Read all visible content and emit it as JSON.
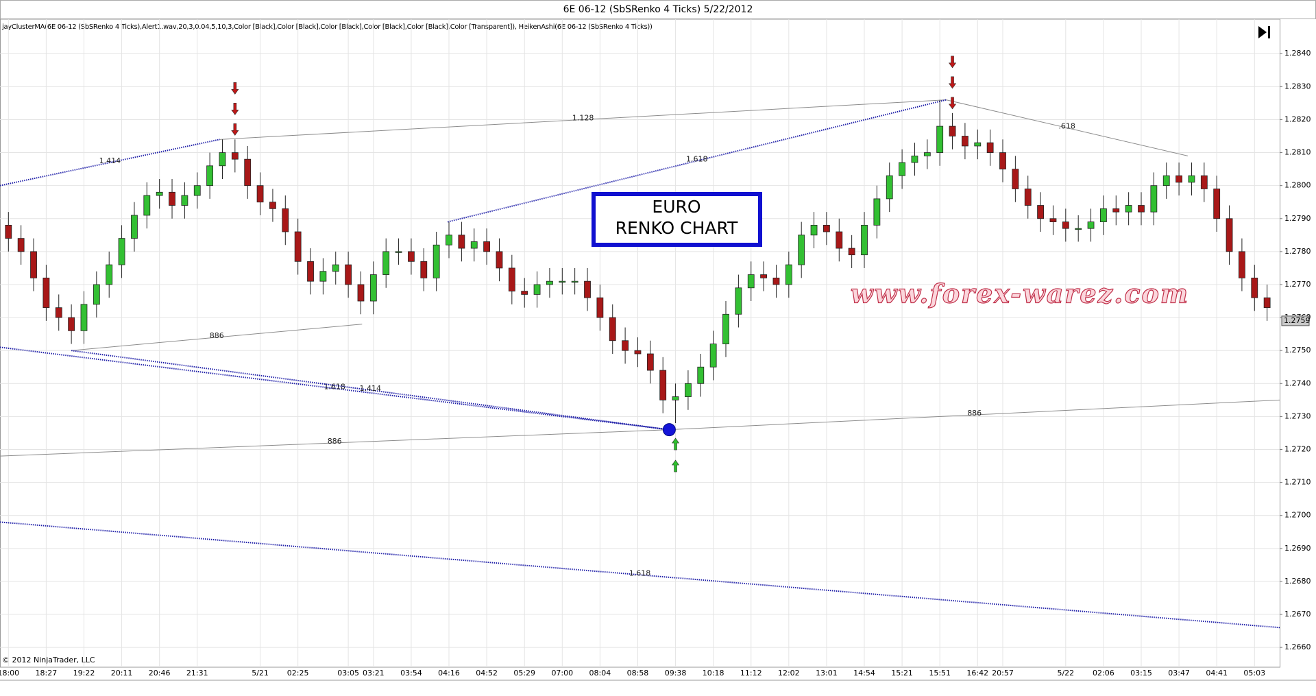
{
  "chart_data": {
    "type": "candlestick",
    "title": "6E 06-12 (SbSRenko 4 Ticks)  5/22/2012",
    "indicator_label": "jayClusterMA(6E 06-12 (SbSRenko 4 Ticks),Alert1.wav,20,3,0.04,5,10,3,Color [Black],Color [Black],Color [Black],Color [Black],Color [Black],Color [Transparent]), HeikenAshi(6E 06-12 (SbSRenko 4 Ticks))",
    "categories": [
      "18:00",
      null,
      null,
      "18:27",
      null,
      null,
      "19:22",
      null,
      null,
      "20:11",
      null,
      null,
      "20:46",
      null,
      null,
      "21:31",
      null,
      null,
      null,
      null,
      "5/21",
      null,
      null,
      "02:25",
      null,
      null,
      null,
      "03:05",
      null,
      "03:21",
      null,
      null,
      "03:54",
      null,
      null,
      "04:16",
      null,
      null,
      "04:52",
      null,
      null,
      "05:29",
      null,
      null,
      "07:00",
      null,
      null,
      "08:04",
      null,
      null,
      "08:58",
      null,
      null,
      "09:38",
      null,
      null,
      "10:18",
      null,
      null,
      "11:12",
      null,
      null,
      "12:02",
      null,
      null,
      "13:01",
      null,
      null,
      "14:54",
      null,
      null,
      "15:21",
      null,
      null,
      "15:51",
      null,
      null,
      "16:42",
      null,
      "20:57",
      null,
      null,
      null,
      null,
      "5/22",
      null,
      null,
      "02:06",
      null,
      null,
      "03:15",
      null,
      null,
      "03:47",
      null,
      null,
      "04:41",
      null,
      null,
      "05:03",
      null
    ],
    "open": [
      1.2788,
      1.2784,
      1.278,
      1.2772,
      1.2763,
      1.276,
      1.2756,
      1.2764,
      1.277,
      1.2776,
      1.2784,
      1.2791,
      1.2797,
      1.2798,
      1.2794,
      1.2797,
      1.28,
      1.2806,
      1.281,
      1.2808,
      1.28,
      1.2795,
      1.2793,
      1.2786,
      1.2777,
      1.2771,
      1.2774,
      1.2776,
      1.277,
      1.2765,
      1.2773,
      1.278,
      1.278,
      1.2777,
      1.2772,
      1.2782,
      1.2785,
      1.2781,
      1.2783,
      1.278,
      1.2775,
      1.2768,
      1.2767,
      1.277,
      1.2771,
      1.2771,
      1.2771,
      1.2766,
      1.276,
      1.2753,
      1.275,
      1.2749,
      1.2744,
      1.2735,
      1.2736,
      1.274,
      1.2745,
      1.2752,
      1.2761,
      1.2769,
      1.2773,
      1.2772,
      1.277,
      1.2776,
      1.2785,
      1.2788,
      1.2786,
      1.2781,
      1.2779,
      1.2788,
      1.2796,
      1.2803,
      1.2807,
      1.2809,
      1.281,
      1.2818,
      1.2815,
      1.2812,
      1.2813,
      1.281,
      1.2805,
      1.2799,
      1.2794,
      1.279,
      1.2789,
      1.2787,
      1.2787,
      1.2789,
      1.2793,
      1.2792,
      1.2794,
      1.2792,
      1.28,
      1.2803,
      1.2801,
      1.2803,
      1.2799,
      1.279,
      1.278,
      1.2772,
      1.2766
    ],
    "high": [
      1.2792,
      1.2788,
      1.2784,
      1.2776,
      1.2767,
      1.2764,
      1.2768,
      1.2774,
      1.278,
      1.2788,
      1.2795,
      1.2801,
      1.2802,
      1.2802,
      1.2801,
      1.2804,
      1.281,
      1.2814,
      1.2814,
      1.2812,
      1.2804,
      1.2799,
      1.2797,
      1.279,
      1.2781,
      1.2778,
      1.278,
      1.278,
      1.2774,
      1.2777,
      1.2784,
      1.2784,
      1.2784,
      1.2781,
      1.2786,
      1.2789,
      1.2789,
      1.2787,
      1.2787,
      1.2784,
      1.2779,
      1.2772,
      1.2774,
      1.2775,
      1.2775,
      1.2775,
      1.2775,
      1.277,
      1.2764,
      1.2757,
      1.2754,
      1.2753,
      1.2748,
      1.274,
      1.2744,
      1.2749,
      1.2756,
      1.2765,
      1.2773,
      1.2777,
      1.2777,
      1.2776,
      1.278,
      1.2789,
      1.2792,
      1.2792,
      1.279,
      1.2785,
      1.2792,
      1.28,
      1.2807,
      1.2811,
      1.2813,
      1.2814,
      1.2826,
      1.2822,
      1.2819,
      1.2817,
      1.2817,
      1.2814,
      1.2809,
      1.2803,
      1.2798,
      1.2794,
      1.2793,
      1.2791,
      1.2793,
      1.2797,
      1.2797,
      1.2798,
      1.2798,
      1.2804,
      1.2807,
      1.2807,
      1.2807,
      1.2807,
      1.2803,
      1.2794,
      1.2784,
      1.2776,
      1.277
    ],
    "low": [
      1.278,
      1.2776,
      1.2768,
      1.2759,
      1.2756,
      1.2752,
      1.2752,
      1.276,
      1.2766,
      1.2772,
      1.278,
      1.2787,
      1.2793,
      1.279,
      1.279,
      1.2793,
      1.2796,
      1.2802,
      1.2804,
      1.2796,
      1.2791,
      1.2789,
      1.2782,
      1.2773,
      1.2767,
      1.2767,
      1.277,
      1.2766,
      1.2761,
      1.2761,
      1.2769,
      1.2776,
      1.2773,
      1.2768,
      1.2768,
      1.2778,
      1.2777,
      1.2777,
      1.2776,
      1.2771,
      1.2764,
      1.2763,
      1.2763,
      1.2766,
      1.2767,
      1.2767,
      1.2762,
      1.2756,
      1.2749,
      1.2746,
      1.2745,
      1.274,
      1.2731,
      1.2728,
      1.2732,
      1.2736,
      1.2741,
      1.2748,
      1.2757,
      1.2765,
      1.2768,
      1.2766,
      1.2766,
      1.2772,
      1.2781,
      1.2782,
      1.2777,
      1.2775,
      1.2775,
      1.2784,
      1.2792,
      1.2799,
      1.2803,
      1.2805,
      1.2806,
      1.2811,
      1.2808,
      1.2808,
      1.2806,
      1.2801,
      1.2795,
      1.279,
      1.2786,
      1.2785,
      1.2783,
      1.2783,
      1.2783,
      1.2785,
      1.2788,
      1.2788,
      1.2788,
      1.2788,
      1.2796,
      1.2797,
      1.2797,
      1.2795,
      1.2786,
      1.2776,
      1.2768,
      1.2762,
      1.2759
    ],
    "close": [
      1.2784,
      1.278,
      1.2772,
      1.2763,
      1.276,
      1.2756,
      1.2764,
      1.277,
      1.2776,
      1.2784,
      1.2791,
      1.2797,
      1.2798,
      1.2794,
      1.2797,
      1.28,
      1.2806,
      1.281,
      1.2808,
      1.28,
      1.2795,
      1.2793,
      1.2786,
      1.2777,
      1.2771,
      1.2774,
      1.2776,
      1.277,
      1.2765,
      1.2773,
      1.278,
      1.278,
      1.2777,
      1.2772,
      1.2782,
      1.2785,
      1.2781,
      1.2783,
      1.278,
      1.2775,
      1.2768,
      1.2767,
      1.277,
      1.2771,
      1.2771,
      1.2771,
      1.2766,
      1.276,
      1.2753,
      1.275,
      1.2749,
      1.2744,
      1.2735,
      1.2736,
      1.274,
      1.2745,
      1.2752,
      1.2761,
      1.2769,
      1.2773,
      1.2772,
      1.277,
      1.2776,
      1.2785,
      1.2788,
      1.2786,
      1.2781,
      1.2779,
      1.2788,
      1.2796,
      1.2803,
      1.2807,
      1.2809,
      1.281,
      1.2818,
      1.2815,
      1.2812,
      1.2813,
      1.281,
      1.2805,
      1.2799,
      1.2794,
      1.279,
      1.2789,
      1.2787,
      1.2787,
      1.2789,
      1.2793,
      1.2792,
      1.2794,
      1.2792,
      1.28,
      1.2803,
      1.2801,
      1.2803,
      1.2799,
      1.279,
      1.278,
      1.2772,
      1.2766,
      1.2763
    ],
    "up_color": "#33c033",
    "down_color": "#a81818",
    "xlim": [
      -0.67,
      101
    ],
    "ylim": [
      1.2654,
      1.2844
    ],
    "yticks": [
      {
        "value": 1.266,
        "label": "1.2660"
      },
      {
        "value": 1.267,
        "label": "1.2670"
      },
      {
        "value": 1.268,
        "label": "1.2680"
      },
      {
        "value": 1.269,
        "label": "1.2690"
      },
      {
        "value": 1.27,
        "label": "1.2700"
      },
      {
        "value": 1.271,
        "label": "1.2710"
      },
      {
        "value": 1.272,
        "label": "1.2720"
      },
      {
        "value": 1.273,
        "label": "1.2730"
      },
      {
        "value": 1.274,
        "label": "1.2740"
      },
      {
        "value": 1.275,
        "label": "1.2750"
      },
      {
        "value": 1.276,
        "label": "1.2760"
      },
      {
        "value": 1.277,
        "label": "1.2770"
      },
      {
        "value": 1.278,
        "label": "1.2780"
      },
      {
        "value": 1.279,
        "label": "1.2790"
      },
      {
        "value": 1.28,
        "label": "1.2800"
      },
      {
        "value": 1.281,
        "label": "1.2810"
      },
      {
        "value": 1.282,
        "label": "1.2820"
      },
      {
        "value": 1.283,
        "label": "1.2830"
      },
      {
        "value": 1.284,
        "label": "1.2840"
      }
    ],
    "grid": true,
    "annotations": [
      {
        "label": "1.414",
        "x": [
          -0.67,
          16.8
        ],
        "y": [
          1.28,
          1.2814
        ],
        "color": "#1f1fa8",
        "dotted": true
      },
      {
        "label": "1.128",
        "x": [
          16.8,
          74.5
        ],
        "y": [
          1.2814,
          1.2826
        ],
        "color": "#8c8c8c",
        "dotted": false
      },
      {
        "label": "1.618",
        "x": [
          34.9,
          74.5
        ],
        "y": [
          1.2789,
          1.2826
        ],
        "color": "#1f1fa8",
        "dotted": true
      },
      {
        "label": ".618",
        "x": [
          74.5,
          93.7
        ],
        "y": [
          1.2826,
          1.2809
        ],
        "color": "#8c8c8c",
        "dotted": false
      },
      {
        "label": "886",
        "x": [
          5,
          28.1
        ],
        "y": [
          1.275,
          1.2758
        ],
        "color": "#8c8c8c",
        "dotted": false
      },
      {
        "label": "1.618",
        "x": [
          -0.67,
          52.5
        ],
        "y": [
          1.2751,
          1.2726
        ],
        "color": "#1f1fa8",
        "dotted": true
      },
      {
        "label": "1.414",
        "x": [
          5,
          52.5
        ],
        "y": [
          1.275,
          1.2726
        ],
        "color": "#1f1fa8",
        "dotted": true
      },
      {
        "label": "886",
        "x": [
          -0.67,
          52.5
        ],
        "y": [
          1.2718,
          1.2726
        ],
        "color": "#8c8c8c",
        "dotted": false
      },
      {
        "label": "886",
        "x": [
          52.5,
          101
        ],
        "y": [
          1.2726,
          1.2735
        ],
        "color": "#8c8c8c",
        "dotted": false
      },
      {
        "label": "1.618",
        "x": [
          -0.67,
          101
        ],
        "y": [
          1.2698,
          1.2666
        ],
        "color": "#1f1fa8",
        "dotted": true
      }
    ],
    "markers": {
      "sell": [
        18,
        75
      ],
      "buy": [
        53
      ]
    },
    "pivot": {
      "x": 52.5,
      "y": 1.2726
    },
    "last_price": {
      "value": 1.2759,
      "label": "1.2759"
    },
    "text_box": [
      "EURO",
      "RENKO CHART"
    ],
    "watermark": "www.forex-warez.com",
    "copyright": "© 2012 NinjaTrader, LLC"
  }
}
